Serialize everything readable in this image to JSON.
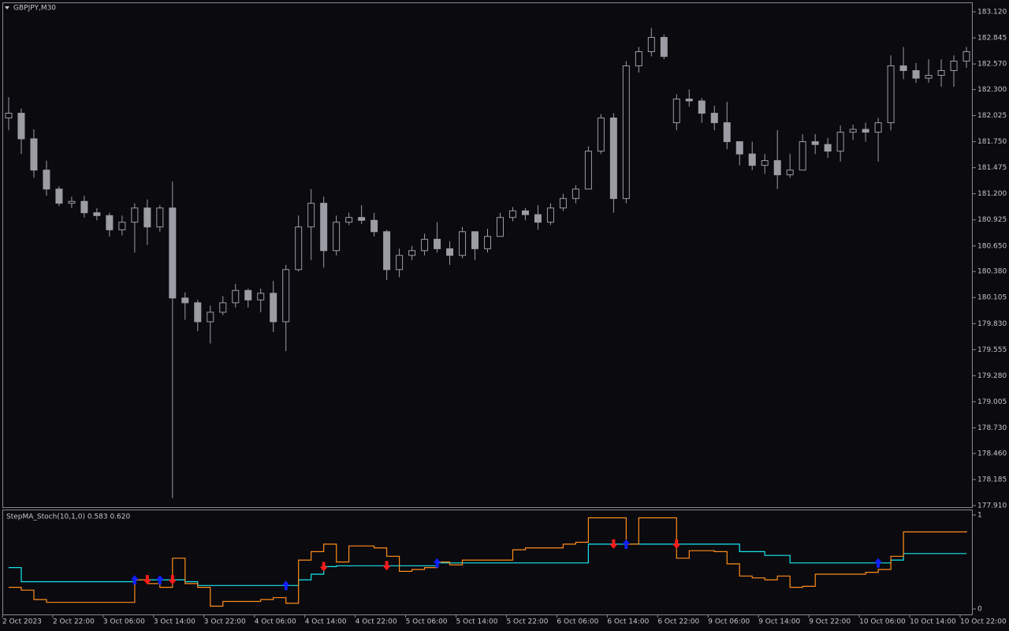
{
  "chart_data": [
    {
      "type": "candlestick",
      "title": "GBPJPY,M30",
      "color": "#9c9ca4",
      "categories": [
        "2 Oct 2023",
        null,
        null,
        null,
        "2 Oct 22:00",
        null,
        null,
        null,
        "3 Oct 06:00",
        null,
        null,
        null,
        "3 Oct 14:00",
        null,
        null,
        null,
        "3 Oct 22:00",
        null,
        null,
        null,
        "4 Oct 06:00",
        null,
        null,
        null,
        "4 Oct 14:00",
        null,
        null,
        null,
        "4 Oct 22:00",
        null,
        null,
        null,
        "5 Oct 06:00",
        null,
        null,
        null,
        "5 Oct 14:00",
        null,
        null,
        null,
        "5 Oct 22:00",
        null,
        null,
        null,
        "6 Oct 06:00",
        null,
        null,
        null,
        "6 Oct 14:00",
        null,
        null,
        null,
        "6 Oct 22:00",
        null,
        null,
        null,
        "9 Oct 06:00",
        null,
        null,
        null,
        "9 Oct 14:00",
        null,
        null,
        null,
        "9 Oct 22:00",
        null,
        null,
        null,
        "10 Oct 06:00",
        null,
        null,
        null,
        "10 Oct 14:00",
        null,
        null,
        null,
        "10 Oct 22:00"
      ],
      "open": [
        182.0,
        182.05,
        181.78,
        181.45,
        181.25,
        181.1,
        181.12,
        181.0,
        180.97,
        180.82,
        180.9,
        181.05,
        180.85,
        181.05,
        180.1,
        180.05,
        179.85,
        179.95,
        180.05,
        180.18,
        180.08,
        180.15,
        179.85,
        180.4,
        180.85,
        181.1,
        180.6,
        180.9,
        180.95,
        180.92,
        180.8,
        180.4,
        180.55,
        180.6,
        180.72,
        180.62,
        180.55,
        180.8,
        180.62,
        180.75,
        180.95,
        181.02,
        180.98,
        180.9,
        181.05,
        181.15,
        181.25,
        181.65,
        182.0,
        181.15,
        182.55,
        182.7,
        182.85,
        181.95,
        182.2,
        182.18,
        182.05,
        181.95,
        181.75,
        181.62,
        181.5,
        181.55,
        181.4,
        181.45,
        181.75,
        181.72,
        181.65,
        181.85,
        181.88,
        181.85,
        181.95,
        182.55,
        182.5,
        182.42,
        182.45,
        182.5,
        182.6
      ],
      "high": [
        182.22,
        182.1,
        181.88,
        181.55,
        181.28,
        181.17,
        181.18,
        181.05,
        181.0,
        180.97,
        181.1,
        181.14,
        181.08,
        181.33,
        180.16,
        180.08,
        180.02,
        180.12,
        180.25,
        180.2,
        180.2,
        180.28,
        180.45,
        180.97,
        181.25,
        181.17,
        180.97,
        181.0,
        181.08,
        181.0,
        180.82,
        180.62,
        180.65,
        180.78,
        180.9,
        180.7,
        180.85,
        180.8,
        180.83,
        181.0,
        181.06,
        181.05,
        181.08,
        181.1,
        181.2,
        181.29,
        181.7,
        182.04,
        182.05,
        182.6,
        182.75,
        182.95,
        182.88,
        182.25,
        182.3,
        182.21,
        182.13,
        182.17,
        181.75,
        181.75,
        181.62,
        181.87,
        181.62,
        181.83,
        181.83,
        181.79,
        181.92,
        181.93,
        181.95,
        182.0,
        182.66,
        182.75,
        182.58,
        182.62,
        182.62,
        182.66,
        182.75
      ],
      "low": [
        181.87,
        181.62,
        181.37,
        181.18,
        181.07,
        181.05,
        180.95,
        180.92,
        180.75,
        180.76,
        180.58,
        180.66,
        180.8,
        177.99,
        179.87,
        179.75,
        179.62,
        179.92,
        180.0,
        180.0,
        179.95,
        179.74,
        179.54,
        180.38,
        180.5,
        180.42,
        180.55,
        180.87,
        180.88,
        180.75,
        180.29,
        180.32,
        180.5,
        180.55,
        180.58,
        180.45,
        180.52,
        180.5,
        180.58,
        180.75,
        180.91,
        180.92,
        180.82,
        180.87,
        181.02,
        181.1,
        181.25,
        181.62,
        181.0,
        181.1,
        182.48,
        182.65,
        182.62,
        181.87,
        182.12,
        181.95,
        181.87,
        181.67,
        181.5,
        181.45,
        181.41,
        181.25,
        181.37,
        181.45,
        181.62,
        181.58,
        181.54,
        181.77,
        181.75,
        181.54,
        181.87,
        182.41,
        182.37,
        182.37,
        182.33,
        182.33,
        182.53
      ],
      "close": [
        182.05,
        181.78,
        181.45,
        181.25,
        181.1,
        181.12,
        181.0,
        180.97,
        180.82,
        180.9,
        181.05,
        180.85,
        181.05,
        180.1,
        180.05,
        179.85,
        179.95,
        180.05,
        180.18,
        180.08,
        180.15,
        179.85,
        180.4,
        180.85,
        181.1,
        180.6,
        180.9,
        180.95,
        180.92,
        180.8,
        180.4,
        180.55,
        180.6,
        180.72,
        180.62,
        180.55,
        180.8,
        180.62,
        180.75,
        180.95,
        181.02,
        180.98,
        180.9,
        181.05,
        181.15,
        181.25,
        181.65,
        182.0,
        181.15,
        182.55,
        182.7,
        182.85,
        182.65,
        182.2,
        182.18,
        182.05,
        181.95,
        181.75,
        181.62,
        181.5,
        181.55,
        181.4,
        181.45,
        181.75,
        181.72,
        181.65,
        181.85,
        181.88,
        181.85,
        181.95,
        182.55,
        182.5,
        182.42,
        182.45,
        182.5,
        182.6,
        182.7
      ],
      "ylim": [
        177.893,
        183.22
      ],
      "yticks": [
        {
          "value": 183.12,
          "label": "183.120"
        },
        {
          "value": 182.845,
          "label": "182.845"
        },
        {
          "value": 182.57,
          "label": "182.570"
        },
        {
          "value": 182.3,
          "label": "182.300"
        },
        {
          "value": 182.025,
          "label": "182.025"
        },
        {
          "value": 181.75,
          "label": "181.750"
        },
        {
          "value": 181.475,
          "label": "181.475"
        },
        {
          "value": 181.2,
          "label": "181.200"
        },
        {
          "value": 180.925,
          "label": "180.925"
        },
        {
          "value": 180.65,
          "label": "180.650"
        },
        {
          "value": 180.38,
          "label": "180.380"
        },
        {
          "value": 180.105,
          "label": "180.105"
        },
        {
          "value": 179.83,
          "label": "179.830"
        },
        {
          "value": 179.555,
          "label": "179.555"
        },
        {
          "value": 179.28,
          "label": "179.280"
        },
        {
          "value": 179.005,
          "label": "179.005"
        },
        {
          "value": 178.73,
          "label": "178.730"
        },
        {
          "value": 178.46,
          "label": "178.460"
        },
        {
          "value": 178.185,
          "label": "178.185"
        },
        {
          "value": 177.91,
          "label": "177.910"
        }
      ]
    },
    {
      "type": "line",
      "title": "StepMA_Stoch(10,1,0) 0.583 0.620",
      "series": [
        {
          "color": "#19e6f0",
          "values": [
            0.44,
            0.29,
            0.29,
            0.29,
            0.29,
            0.29,
            0.29,
            0.29,
            0.29,
            0.29,
            0.31,
            0.31,
            0.31,
            0.31,
            0.29,
            0.25,
            0.25,
            0.25,
            0.25,
            0.25,
            0.25,
            0.25,
            0.25,
            0.31,
            0.37,
            0.45,
            0.46,
            0.46,
            0.46,
            0.46,
            0.46,
            0.46,
            0.46,
            0.46,
            0.49,
            0.49,
            0.49,
            0.49,
            0.49,
            0.49,
            0.49,
            0.49,
            0.49,
            0.49,
            0.49,
            0.49,
            0.69,
            0.69,
            0.69,
            0.69,
            0.69,
            0.69,
            0.69,
            0.69,
            0.69,
            0.69,
            0.69,
            0.69,
            0.61,
            0.61,
            0.57,
            0.57,
            0.49,
            0.49,
            0.49,
            0.49,
            0.49,
            0.49,
            0.49,
            0.49,
            0.52,
            0.59,
            0.59,
            0.59,
            0.59,
            0.59,
            0.59
          ]
        },
        {
          "color": "#ff8c1a",
          "values": [
            0.23,
            0.2,
            0.1,
            0.07,
            0.07,
            0.07,
            0.07,
            0.07,
            0.07,
            0.07,
            0.31,
            0.27,
            0.23,
            0.54,
            0.27,
            0.23,
            0.03,
            0.08,
            0.08,
            0.08,
            0.1,
            0.12,
            0.06,
            0.52,
            0.61,
            0.69,
            0.5,
            0.67,
            0.67,
            0.65,
            0.56,
            0.4,
            0.42,
            0.44,
            0.5,
            0.47,
            0.52,
            0.52,
            0.52,
            0.52,
            0.63,
            0.65,
            0.65,
            0.65,
            0.69,
            0.71,
            0.97,
            0.97,
            0.97,
            0.69,
            0.97,
            0.97,
            0.97,
            0.54,
            0.62,
            0.62,
            0.61,
            0.48,
            0.35,
            0.33,
            0.31,
            0.35,
            0.23,
            0.24,
            0.37,
            0.37,
            0.37,
            0.37,
            0.39,
            0.42,
            0.56,
            0.82,
            0.82,
            0.82,
            0.82,
            0.82,
            0.83
          ]
        }
      ],
      "buy_signals": [
        10,
        12,
        22,
        34,
        49,
        69
      ],
      "sell_signals": [
        11,
        13,
        25,
        30,
        48,
        53
      ],
      "buy_color": "#1020ff",
      "sell_color": "#ff1a1a",
      "ylim": [
        -0.067,
        1.05
      ],
      "yticks": [
        1,
        0
      ]
    }
  ]
}
